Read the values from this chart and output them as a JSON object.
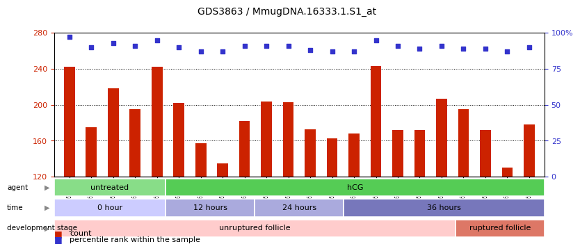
{
  "title": "GDS3863 / MmugDNA.16333.1.S1_at",
  "samples": [
    "GSM563219",
    "GSM563220",
    "GSM563221",
    "GSM563222",
    "GSM563223",
    "GSM563224",
    "GSM563225",
    "GSM563226",
    "GSM563227",
    "GSM563228",
    "GSM563229",
    "GSM563230",
    "GSM563231",
    "GSM563232",
    "GSM563233",
    "GSM563234",
    "GSM563235",
    "GSM563236",
    "GSM563237",
    "GSM563238",
    "GSM563239",
    "GSM563240"
  ],
  "counts": [
    242,
    175,
    218,
    195,
    242,
    202,
    157,
    135,
    182,
    204,
    203,
    173,
    163,
    168,
    243,
    172,
    172,
    207,
    195,
    172,
    130,
    178
  ],
  "percentiles": [
    97,
    90,
    93,
    91,
    95,
    90,
    87,
    87,
    91,
    91,
    91,
    88,
    87,
    87,
    95,
    91,
    89,
    91,
    89,
    89,
    87,
    90
  ],
  "bar_color": "#cc2200",
  "dot_color": "#3333cc",
  "ylim_left": [
    120,
    280
  ],
  "ylim_right": [
    0,
    100
  ],
  "yticks_left": [
    120,
    160,
    200,
    240,
    280
  ],
  "yticks_right": [
    0,
    25,
    50,
    75,
    100
  ],
  "grid_values": [
    160,
    200,
    240
  ],
  "agent_groups": [
    {
      "label": "untreated",
      "start": 0,
      "end": 5,
      "color": "#88dd88"
    },
    {
      "label": "hCG",
      "start": 5,
      "end": 22,
      "color": "#55cc55"
    }
  ],
  "time_groups": [
    {
      "label": "0 hour",
      "start": 0,
      "end": 5,
      "color": "#ccccff"
    },
    {
      "label": "12 hours",
      "start": 5,
      "end": 9,
      "color": "#aaaadd"
    },
    {
      "label": "24 hours",
      "start": 9,
      "end": 13,
      "color": "#aaaadd"
    },
    {
      "label": "36 hours",
      "start": 13,
      "end": 22,
      "color": "#7777bb"
    }
  ],
  "dev_groups": [
    {
      "label": "unruptured follicle",
      "start": 0,
      "end": 18,
      "color": "#ffcccc"
    },
    {
      "label": "ruptured follicle",
      "start": 18,
      "end": 22,
      "color": "#dd7766"
    }
  ],
  "row_labels": [
    "agent",
    "time",
    "development stage"
  ],
  "legend_count_color": "#cc2200",
  "legend_dot_color": "#3333cc",
  "background_color": "#ffffff",
  "plot_bg_color": "#ffffff",
  "xtick_bg_color": "#dddddd"
}
